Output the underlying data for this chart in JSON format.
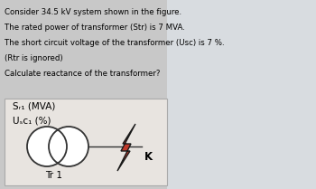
{
  "title_lines": [
    "Consider 34.5 kV system shown in the figure.",
    "The rated power of transformer (Str) is 7 MVA.",
    "The short circuit voltage of the transformer (Usc) is 7 %.",
    "(Rtr is ignored)",
    "Calculate reactance of the transformer?"
  ],
  "label_str": "Sᵣ₁ (MVA)",
  "label_usc": "Uₛᴄ₁ (%)",
  "label_tr": "Tr 1",
  "label_k": "K",
  "bg_color": "#c8c8c8",
  "box_color": "#e8e4e0",
  "text_color": "#000000",
  "bolt_color_body": "#c0392b",
  "bolt_color_outline": "#1a1a1a",
  "font_size_text": 6.2,
  "font_size_label": 7.5,
  "font_size_k": 8.5
}
